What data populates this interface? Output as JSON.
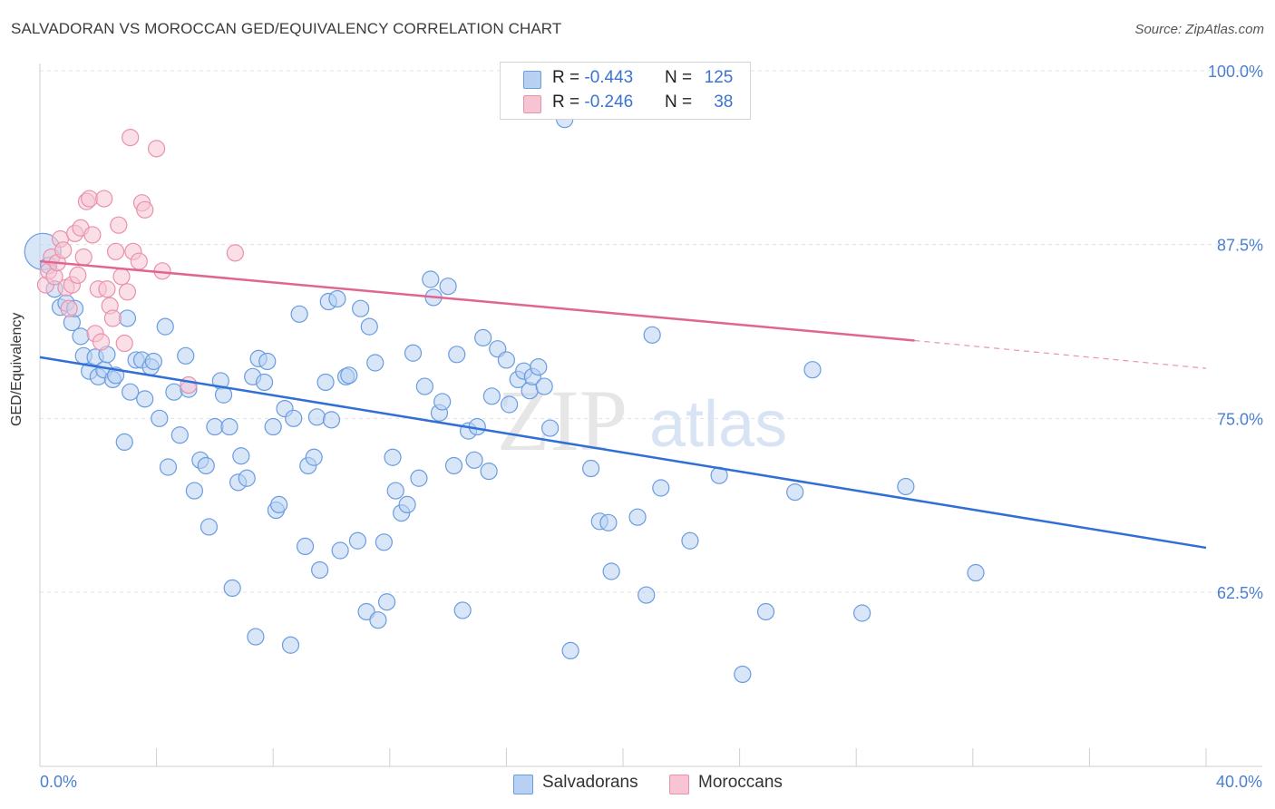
{
  "title": "SALVADORAN VS MOROCCAN GED/EQUIVALENCY CORRELATION CHART",
  "source": "Source: ZipAtlas.com",
  "watermark": {
    "zip": "ZIP",
    "atlas": "atlas"
  },
  "colors": {
    "blue_fill": "#b8d1f3",
    "blue_stroke": "#6a9ce0",
    "blue_line": "#2f6fd6",
    "pink_fill": "#f7c4d4",
    "pink_stroke": "#e891ad",
    "pink_line": "#e0658f",
    "grid": "#e3e3e3",
    "axis_text": "#4a7fd4"
  },
  "legend": {
    "rows": [
      {
        "r_label": "R = ",
        "r_value": "-0.443",
        "n_label": "N = ",
        "n_value": "125",
        "swatch": "blue"
      },
      {
        "r_label": "R = ",
        "r_value": "-0.246",
        "n_label": "N = ",
        "n_value": "38",
        "swatch": "pink"
      }
    ]
  },
  "bottom_legend": [
    "Salvadorans",
    "Moroccans"
  ],
  "chart_data": {
    "type": "scatter",
    "title": "SALVADORAN VS MOROCCAN GED/EQUIVALENCY CORRELATION CHART",
    "xlabel": "",
    "ylabel": "GED/Equivalency",
    "xlim": [
      0,
      40
    ],
    "ylim": [
      52,
      101
    ],
    "x_tick_labels": [
      "0.0%",
      "40.0%"
    ],
    "y_ticks": [
      62.5,
      75.0,
      87.5,
      100.0
    ],
    "y_tick_labels": [
      "62.5%",
      "75.0%",
      "87.5%",
      "100.0%"
    ],
    "grid": true,
    "legend_position": "top-center",
    "series": [
      {
        "name": "Salvadorans",
        "r": -0.443,
        "n": 125,
        "trend": {
          "x0": 0,
          "y0": 79.4,
          "x1": 40,
          "y1": 65.7
        },
        "points": [
          [
            0.1,
            87.0
          ],
          [
            0.3,
            86.0
          ],
          [
            0.5,
            84.3
          ],
          [
            0.7,
            83.0
          ],
          [
            0.9,
            83.3
          ],
          [
            1.1,
            81.9
          ],
          [
            1.2,
            82.9
          ],
          [
            1.4,
            80.9
          ],
          [
            1.5,
            79.5
          ],
          [
            1.7,
            78.4
          ],
          [
            1.9,
            79.4
          ],
          [
            2.0,
            78.0
          ],
          [
            2.2,
            78.5
          ],
          [
            2.3,
            79.6
          ],
          [
            2.5,
            77.8
          ],
          [
            2.6,
            78.1
          ],
          [
            2.9,
            73.3
          ],
          [
            3.0,
            82.2
          ],
          [
            3.1,
            76.9
          ],
          [
            3.3,
            79.2
          ],
          [
            3.5,
            79.2
          ],
          [
            3.6,
            76.4
          ],
          [
            3.8,
            78.7
          ],
          [
            3.9,
            79.1
          ],
          [
            4.1,
            75.0
          ],
          [
            4.3,
            81.6
          ],
          [
            4.4,
            71.5
          ],
          [
            4.6,
            76.9
          ],
          [
            4.8,
            73.8
          ],
          [
            5.0,
            79.5
          ],
          [
            5.1,
            77.1
          ],
          [
            5.3,
            69.8
          ],
          [
            5.5,
            72.0
          ],
          [
            5.7,
            71.6
          ],
          [
            5.8,
            67.2
          ],
          [
            6.0,
            74.4
          ],
          [
            6.2,
            77.7
          ],
          [
            6.3,
            76.7
          ],
          [
            6.5,
            74.4
          ],
          [
            6.6,
            62.8
          ],
          [
            6.8,
            70.4
          ],
          [
            6.9,
            72.3
          ],
          [
            7.1,
            70.7
          ],
          [
            7.3,
            78.0
          ],
          [
            7.4,
            59.3
          ],
          [
            7.5,
            79.3
          ],
          [
            7.7,
            77.6
          ],
          [
            7.8,
            79.1
          ],
          [
            8.0,
            74.4
          ],
          [
            8.1,
            68.4
          ],
          [
            8.2,
            68.8
          ],
          [
            8.4,
            75.7
          ],
          [
            8.6,
            58.7
          ],
          [
            8.7,
            75.0
          ],
          [
            8.9,
            82.5
          ],
          [
            9.1,
            65.8
          ],
          [
            9.2,
            71.6
          ],
          [
            9.4,
            72.2
          ],
          [
            9.5,
            75.1
          ],
          [
            9.6,
            64.1
          ],
          [
            9.8,
            77.6
          ],
          [
            9.9,
            83.4
          ],
          [
            10.0,
            74.9
          ],
          [
            10.2,
            83.6
          ],
          [
            10.3,
            65.5
          ],
          [
            10.5,
            78.0
          ],
          [
            10.6,
            78.1
          ],
          [
            10.9,
            66.2
          ],
          [
            11.0,
            82.9
          ],
          [
            11.2,
            61.1
          ],
          [
            11.3,
            81.6
          ],
          [
            11.5,
            79.0
          ],
          [
            11.6,
            60.5
          ],
          [
            11.8,
            66.1
          ],
          [
            11.9,
            61.8
          ],
          [
            12.1,
            72.2
          ],
          [
            12.2,
            69.8
          ],
          [
            12.4,
            68.2
          ],
          [
            12.6,
            68.8
          ],
          [
            12.8,
            79.7
          ],
          [
            13.0,
            70.7
          ],
          [
            13.2,
            77.3
          ],
          [
            13.4,
            85.0
          ],
          [
            13.5,
            83.7
          ],
          [
            13.7,
            75.4
          ],
          [
            13.8,
            76.2
          ],
          [
            14.0,
            84.5
          ],
          [
            14.2,
            71.6
          ],
          [
            14.3,
            79.6
          ],
          [
            14.5,
            61.2
          ],
          [
            14.7,
            74.1
          ],
          [
            14.9,
            72.0
          ],
          [
            15.0,
            74.4
          ],
          [
            15.2,
            80.8
          ],
          [
            15.4,
            71.2
          ],
          [
            15.5,
            76.6
          ],
          [
            15.7,
            80.0
          ],
          [
            16.0,
            79.2
          ],
          [
            16.1,
            76.0
          ],
          [
            16.4,
            77.8
          ],
          [
            16.6,
            78.4
          ],
          [
            16.8,
            77.0
          ],
          [
            16.9,
            78.0
          ],
          [
            17.1,
            78.7
          ],
          [
            17.3,
            77.3
          ],
          [
            17.5,
            74.3
          ],
          [
            18.0,
            96.5
          ],
          [
            18.2,
            58.3
          ],
          [
            18.9,
            71.4
          ],
          [
            19.2,
            67.6
          ],
          [
            19.5,
            67.5
          ],
          [
            19.6,
            64.0
          ],
          [
            20.5,
            67.9
          ],
          [
            20.8,
            62.3
          ],
          [
            21.0,
            81.0
          ],
          [
            21.3,
            70.0
          ],
          [
            22.3,
            66.2
          ],
          [
            23.3,
            70.9
          ],
          [
            24.1,
            56.6
          ],
          [
            24.9,
            61.1
          ],
          [
            25.9,
            69.7
          ],
          [
            26.5,
            78.5
          ],
          [
            28.2,
            61.0
          ],
          [
            29.7,
            70.1
          ],
          [
            32.1,
            63.9
          ]
        ]
      },
      {
        "name": "Moroccans",
        "r": -0.246,
        "n": 38,
        "trend": {
          "x0": 0,
          "y0": 86.3,
          "x1": 30,
          "y1": 80.6,
          "dash_to_x": 40,
          "dash_to_y": 78.6
        },
        "points": [
          [
            0.2,
            84.6
          ],
          [
            0.3,
            85.6
          ],
          [
            0.4,
            86.6
          ],
          [
            0.5,
            85.2
          ],
          [
            0.6,
            86.2
          ],
          [
            0.7,
            87.9
          ],
          [
            0.8,
            87.1
          ],
          [
            0.9,
            84.4
          ],
          [
            1.0,
            82.9
          ],
          [
            1.1,
            84.6
          ],
          [
            1.2,
            88.3
          ],
          [
            1.3,
            85.3
          ],
          [
            1.4,
            88.7
          ],
          [
            1.5,
            86.6
          ],
          [
            1.6,
            90.6
          ],
          [
            1.7,
            90.8
          ],
          [
            1.8,
            88.2
          ],
          [
            1.9,
            81.1
          ],
          [
            2.0,
            84.3
          ],
          [
            2.1,
            80.5
          ],
          [
            2.2,
            90.8
          ],
          [
            2.3,
            84.3
          ],
          [
            2.4,
            83.1
          ],
          [
            2.5,
            82.2
          ],
          [
            2.6,
            87.0
          ],
          [
            2.7,
            88.9
          ],
          [
            2.8,
            85.2
          ],
          [
            2.9,
            80.4
          ],
          [
            3.0,
            84.1
          ],
          [
            3.1,
            95.2
          ],
          [
            3.2,
            87.0
          ],
          [
            3.4,
            86.3
          ],
          [
            3.5,
            90.5
          ],
          [
            3.6,
            90.0
          ],
          [
            4.0,
            94.4
          ],
          [
            4.2,
            85.6
          ],
          [
            5.1,
            77.4
          ],
          [
            6.7,
            86.9
          ]
        ]
      }
    ]
  }
}
